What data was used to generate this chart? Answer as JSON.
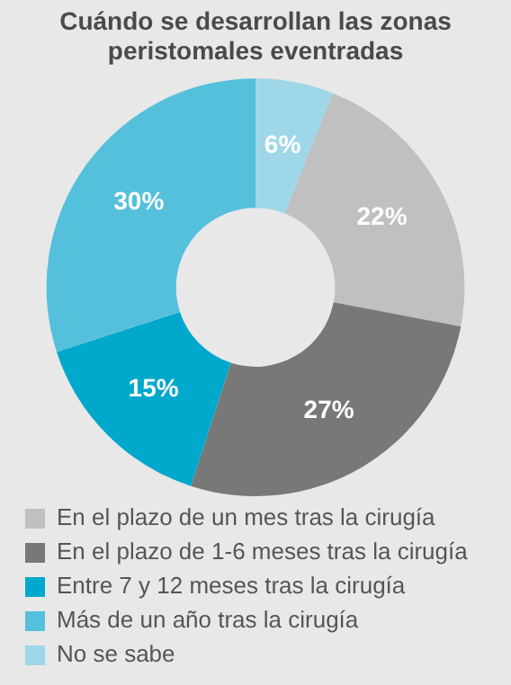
{
  "chart_data": {
    "type": "donut",
    "title": "Cuándo se desarrollan las zonas peristomales eventradas",
    "categories": [
      "En el plazo de un mes tras la cirugía",
      "En el plazo de 1-6 meses tras la cirugía",
      "Entre 7 y 12 meses tras la cirugía",
      "Más de un año tras la cirugía",
      "No se sabe"
    ],
    "values": [
      22,
      27,
      15,
      30,
      6
    ],
    "colors": [
      "#c0c0c0",
      "#787878",
      "#00a8cc",
      "#54c0dc",
      "#9ed7e8"
    ],
    "value_labels": [
      "22%",
      "27%",
      "15%",
      "30%",
      "6%"
    ],
    "legend": "bottom"
  }
}
